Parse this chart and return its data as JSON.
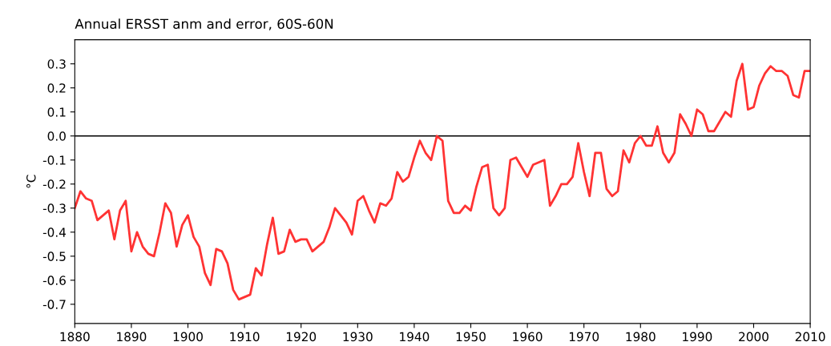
{
  "chart_data": {
    "type": "line",
    "title": "Annual ERSST anm and error, 60S-60N",
    "ylabel": "°C",
    "x": [
      1880,
      1881,
      1882,
      1883,
      1884,
      1885,
      1886,
      1887,
      1888,
      1889,
      1890,
      1891,
      1892,
      1893,
      1894,
      1895,
      1896,
      1897,
      1898,
      1899,
      1900,
      1901,
      1902,
      1903,
      1904,
      1905,
      1906,
      1907,
      1908,
      1909,
      1910,
      1911,
      1912,
      1913,
      1914,
      1915,
      1916,
      1917,
      1918,
      1919,
      1920,
      1921,
      1922,
      1923,
      1924,
      1925,
      1926,
      1927,
      1928,
      1929,
      1930,
      1931,
      1932,
      1933,
      1934,
      1935,
      1936,
      1937,
      1938,
      1939,
      1940,
      1941,
      1942,
      1943,
      1944,
      1945,
      1946,
      1947,
      1948,
      1949,
      1950,
      1951,
      1952,
      1953,
      1954,
      1955,
      1956,
      1957,
      1958,
      1959,
      1960,
      1961,
      1962,
      1963,
      1964,
      1965,
      1966,
      1967,
      1968,
      1969,
      1970,
      1971,
      1972,
      1973,
      1974,
      1975,
      1976,
      1977,
      1978,
      1979,
      1980,
      1981,
      1982,
      1983,
      1984,
      1985,
      1986,
      1987,
      1988,
      1989,
      1990,
      1991,
      1992,
      1993,
      1994,
      1995,
      1996,
      1997,
      1998,
      1999,
      2000,
      2001,
      2002,
      2003,
      2004,
      2005,
      2006,
      2007,
      2008,
      2009,
      2010
    ],
    "series": [
      {
        "color": "#ff3333",
        "values": [
          -0.3,
          -0.23,
          -0.26,
          -0.27,
          -0.35,
          -0.33,
          -0.31,
          -0.43,
          -0.31,
          -0.27,
          -0.48,
          -0.4,
          -0.46,
          -0.49,
          -0.5,
          -0.4,
          -0.28,
          -0.32,
          -0.46,
          -0.37,
          -0.33,
          -0.42,
          -0.46,
          -0.57,
          -0.62,
          -0.47,
          -0.48,
          -0.53,
          -0.64,
          -0.68,
          -0.67,
          -0.66,
          -0.55,
          -0.58,
          -0.45,
          -0.34,
          -0.49,
          -0.48,
          -0.39,
          -0.44,
          -0.43,
          -0.43,
          -0.48,
          -0.46,
          -0.44,
          -0.38,
          -0.3,
          -0.33,
          -0.36,
          -0.41,
          -0.27,
          -0.25,
          -0.31,
          -0.36,
          -0.28,
          -0.29,
          -0.26,
          -0.15,
          -0.19,
          -0.17,
          -0.09,
          -0.02,
          -0.07,
          -0.1,
          0.0,
          -0.02,
          -0.27,
          -0.32,
          -0.32,
          -0.29,
          -0.31,
          -0.21,
          -0.13,
          -0.12,
          -0.3,
          -0.33,
          -0.3,
          -0.1,
          -0.09,
          -0.13,
          -0.17,
          -0.12,
          -0.11,
          -0.1,
          -0.29,
          -0.25,
          -0.2,
          -0.2,
          -0.17,
          -0.03,
          -0.15,
          -0.25,
          -0.07,
          -0.07,
          -0.22,
          -0.25,
          -0.23,
          -0.06,
          -0.11,
          -0.03,
          0.0,
          -0.04,
          -0.04,
          0.04,
          -0.07,
          -0.11,
          -0.07,
          0.09,
          0.05,
          0.0,
          0.11,
          0.09,
          0.02,
          0.02,
          0.06,
          0.1,
          0.08,
          0.23,
          0.3,
          0.11,
          0.12,
          0.21,
          0.26,
          0.29,
          0.27,
          0.27,
          0.25,
          0.17,
          0.16,
          0.27,
          0.27
        ]
      }
    ],
    "xlim": [
      1880,
      2010
    ],
    "xticks": [
      1880,
      1890,
      1900,
      1910,
      1920,
      1930,
      1940,
      1950,
      1960,
      1970,
      1980,
      1990,
      2000,
      2010
    ],
    "ylim": [
      -0.78,
      0.4
    ],
    "yticks": [
      -0.7,
      -0.6,
      -0.5,
      -0.4,
      -0.3,
      -0.2,
      -0.1,
      {
        "value": 0,
        "label": "0.0"
      },
      0.1,
      0.2,
      0.3
    ],
    "ref_lines": [
      {
        "axis": "y",
        "value": 0,
        "color": "#000000"
      }
    ],
    "grid": false,
    "legend": false
  }
}
